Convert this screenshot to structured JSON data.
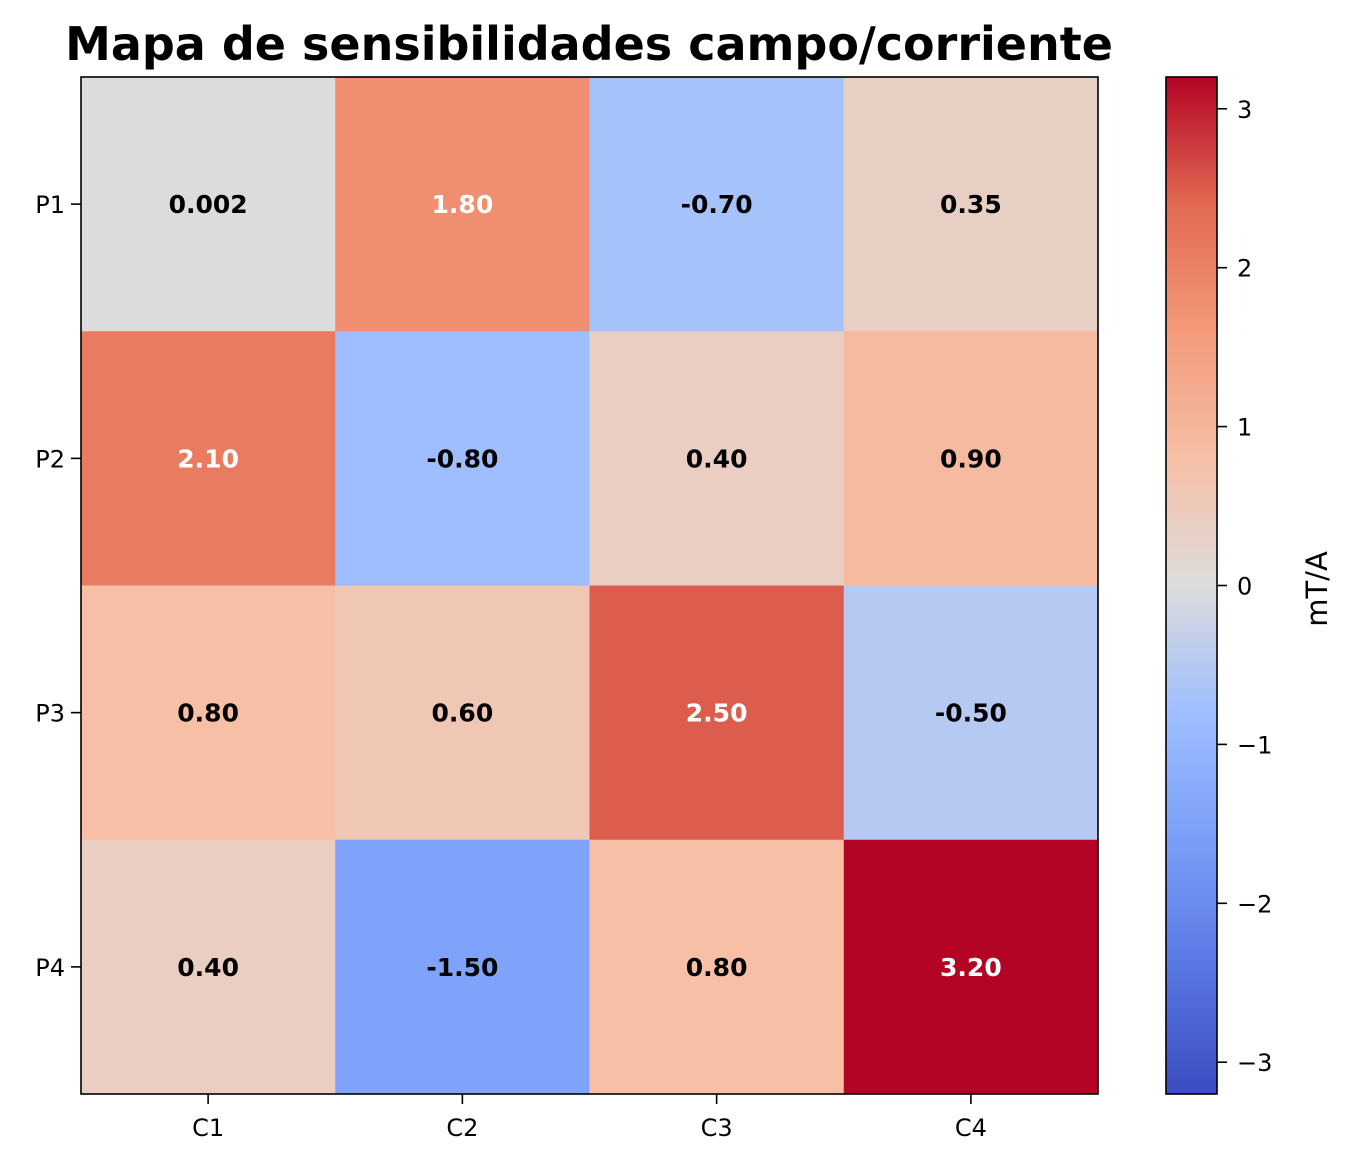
{
  "chart_data": {
    "type": "heatmap",
    "title": "Mapa de sensibilidades campo/corriente",
    "x_categories": [
      "C1",
      "C2",
      "C3",
      "C4"
    ],
    "y_categories": [
      "P1",
      "P2",
      "P3",
      "P4"
    ],
    "values": [
      [
        0.002,
        1.8,
        -0.7,
        0.35
      ],
      [
        2.1,
        -0.8,
        0.4,
        0.9
      ],
      [
        0.8,
        0.6,
        2.5,
        -0.5
      ],
      [
        0.4,
        -1.5,
        0.8,
        3.2
      ]
    ],
    "cell_labels": [
      [
        "0.002",
        "1.80",
        "-0.70",
        "0.35"
      ],
      [
        "2.10",
        "-0.80",
        "0.40",
        "0.90"
      ],
      [
        "0.80",
        "0.60",
        "2.50",
        "-0.50"
      ],
      [
        "0.40",
        "-1.50",
        "0.80",
        "3.20"
      ]
    ],
    "colormap": "coolwarm",
    "color_range": [
      -3.2,
      3.2
    ],
    "colorbar": {
      "label": "mT/A",
      "ticks": [
        -3,
        -2,
        -1,
        0,
        1,
        2,
        3
      ],
      "tick_labels": [
        "−3",
        "−2",
        "−1",
        "0",
        "1",
        "2",
        "3"
      ],
      "placement": "right"
    },
    "grid": false
  }
}
